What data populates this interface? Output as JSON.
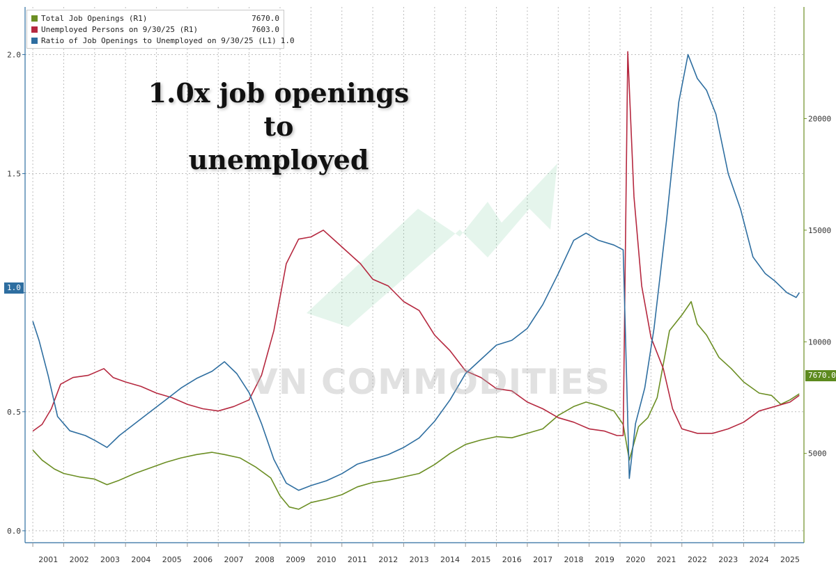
{
  "headline": [
    "1.0x job openings to",
    "unemployed"
  ],
  "watermark": "VN COMMODITIES",
  "legend": [
    {
      "label": "Total Job Openings (R1)",
      "value": "7670.0",
      "color": "#6b8e23"
    },
    {
      "label": "Unemployed Persons on 9/30/25 (R1)",
      "value": "7603.0",
      "color": "#b5283f"
    },
    {
      "label": "Ratio of Job Openings to Unemployed on 9/30/25 (L1)",
      "value": "1.0",
      "color": "#2e6ea0"
    }
  ],
  "badges": {
    "left": "1.0",
    "right": "7670.0"
  },
  "chart_data": {
    "type": "line",
    "x_range": [
      2000.75,
      2025.95
    ],
    "left_axis": {
      "ylim": [
        -0.05,
        2.2
      ],
      "ticks": [
        0.0,
        0.5,
        1.0,
        1.5,
        2.0
      ],
      "tick_labels": [
        "0.0",
        "0.5",
        "1.0",
        "1.5",
        "2.0"
      ]
    },
    "right_axis": {
      "ylim": [
        1000,
        25000
      ],
      "ticks": [
        5000,
        10000,
        15000,
        20000
      ],
      "tick_labels": [
        "5000",
        "10000",
        "15000",
        "20000"
      ]
    },
    "x_labels": [
      "2001",
      "2002",
      "2003",
      "2004",
      "2005",
      "2006",
      "2007",
      "2008",
      "2009",
      "2010",
      "2011",
      "2012",
      "2013",
      "2014",
      "2015",
      "2016",
      "2017",
      "2018",
      "2019",
      "2020",
      "2021",
      "2022",
      "2023",
      "2024",
      "2025"
    ],
    "grid": true,
    "series": [
      {
        "name": "Total Job Openings (R1)",
        "axis": "right",
        "color": "#6b8e23",
        "points": [
          [
            2001.0,
            5150
          ],
          [
            2001.3,
            4700
          ],
          [
            2001.7,
            4300
          ],
          [
            2002.0,
            4100
          ],
          [
            2002.5,
            3950
          ],
          [
            2003.0,
            3850
          ],
          [
            2003.4,
            3600
          ],
          [
            2003.8,
            3800
          ],
          [
            2004.3,
            4100
          ],
          [
            2004.8,
            4350
          ],
          [
            2005.3,
            4600
          ],
          [
            2005.8,
            4800
          ],
          [
            2006.3,
            4950
          ],
          [
            2006.8,
            5050
          ],
          [
            2007.2,
            4950
          ],
          [
            2007.7,
            4800
          ],
          [
            2008.2,
            4400
          ],
          [
            2008.7,
            3900
          ],
          [
            2009.0,
            3100
          ],
          [
            2009.3,
            2600
          ],
          [
            2009.6,
            2500
          ],
          [
            2010.0,
            2800
          ],
          [
            2010.5,
            2950
          ],
          [
            2011.0,
            3150
          ],
          [
            2011.5,
            3500
          ],
          [
            2012.0,
            3700
          ],
          [
            2012.5,
            3800
          ],
          [
            2013.0,
            3950
          ],
          [
            2013.5,
            4100
          ],
          [
            2014.0,
            4500
          ],
          [
            2014.5,
            5000
          ],
          [
            2015.0,
            5400
          ],
          [
            2015.5,
            5600
          ],
          [
            2016.0,
            5750
          ],
          [
            2016.5,
            5700
          ],
          [
            2017.0,
            5900
          ],
          [
            2017.5,
            6100
          ],
          [
            2018.0,
            6700
          ],
          [
            2018.5,
            7100
          ],
          [
            2018.9,
            7300
          ],
          [
            2019.3,
            7150
          ],
          [
            2019.8,
            6900
          ],
          [
            2020.1,
            6300
          ],
          [
            2020.3,
            4700
          ],
          [
            2020.6,
            6200
          ],
          [
            2020.9,
            6600
          ],
          [
            2021.2,
            7500
          ],
          [
            2021.6,
            10500
          ],
          [
            2022.0,
            11200
          ],
          [
            2022.3,
            11800
          ],
          [
            2022.5,
            10800
          ],
          [
            2022.8,
            10300
          ],
          [
            2023.2,
            9300
          ],
          [
            2023.6,
            8800
          ],
          [
            2024.0,
            8200
          ],
          [
            2024.5,
            7700
          ],
          [
            2024.9,
            7600
          ],
          [
            2025.2,
            7200
          ],
          [
            2025.5,
            7400
          ],
          [
            2025.8,
            7670
          ]
        ]
      },
      {
        "name": "Unemployed Persons on 9/30/25 (R1)",
        "axis": "right",
        "color": "#b5283f",
        "points": [
          [
            2001.0,
            6000
          ],
          [
            2001.3,
            6300
          ],
          [
            2001.6,
            7000
          ],
          [
            2001.9,
            8100
          ],
          [
            2002.3,
            8400
          ],
          [
            2002.8,
            8500
          ],
          [
            2003.3,
            8800
          ],
          [
            2003.6,
            8400
          ],
          [
            2004.0,
            8200
          ],
          [
            2004.5,
            8000
          ],
          [
            2005.0,
            7700
          ],
          [
            2005.5,
            7500
          ],
          [
            2006.0,
            7200
          ],
          [
            2006.5,
            7000
          ],
          [
            2007.0,
            6900
          ],
          [
            2007.5,
            7100
          ],
          [
            2008.0,
            7400
          ],
          [
            2008.4,
            8500
          ],
          [
            2008.8,
            10500
          ],
          [
            2009.2,
            13500
          ],
          [
            2009.6,
            14600
          ],
          [
            2010.0,
            14700
          ],
          [
            2010.4,
            15000
          ],
          [
            2010.8,
            14500
          ],
          [
            2011.2,
            14000
          ],
          [
            2011.6,
            13500
          ],
          [
            2012.0,
            12800
          ],
          [
            2012.5,
            12500
          ],
          [
            2013.0,
            11800
          ],
          [
            2013.5,
            11400
          ],
          [
            2014.0,
            10300
          ],
          [
            2014.5,
            9600
          ],
          [
            2015.0,
            8700
          ],
          [
            2015.5,
            8400
          ],
          [
            2016.0,
            7900
          ],
          [
            2016.5,
            7800
          ],
          [
            2017.0,
            7300
          ],
          [
            2017.5,
            7000
          ],
          [
            2018.0,
            6600
          ],
          [
            2018.5,
            6400
          ],
          [
            2019.0,
            6100
          ],
          [
            2019.5,
            6000
          ],
          [
            2019.9,
            5800
          ],
          [
            2020.1,
            5800
          ],
          [
            2020.25,
            23000
          ],
          [
            2020.45,
            16500
          ],
          [
            2020.7,
            12500
          ],
          [
            2021.0,
            10200
          ],
          [
            2021.4,
            8800
          ],
          [
            2021.7,
            7000
          ],
          [
            2022.0,
            6100
          ],
          [
            2022.5,
            5900
          ],
          [
            2023.0,
            5900
          ],
          [
            2023.5,
            6100
          ],
          [
            2024.0,
            6400
          ],
          [
            2024.5,
            6900
          ],
          [
            2025.0,
            7100
          ],
          [
            2025.5,
            7300
          ],
          [
            2025.8,
            7603
          ]
        ]
      },
      {
        "name": "Ratio of Job Openings to Unemployed on 9/30/25 (L1)",
        "axis": "left",
        "color": "#2e6ea0",
        "points": [
          [
            2001.0,
            0.88
          ],
          [
            2001.2,
            0.8
          ],
          [
            2001.5,
            0.65
          ],
          [
            2001.8,
            0.48
          ],
          [
            2002.2,
            0.42
          ],
          [
            2002.7,
            0.4
          ],
          [
            2003.0,
            0.38
          ],
          [
            2003.4,
            0.35
          ],
          [
            2003.8,
            0.4
          ],
          [
            2004.3,
            0.45
          ],
          [
            2004.8,
            0.5
          ],
          [
            2005.3,
            0.55
          ],
          [
            2005.8,
            0.6
          ],
          [
            2006.3,
            0.64
          ],
          [
            2006.8,
            0.67
          ],
          [
            2007.2,
            0.71
          ],
          [
            2007.6,
            0.66
          ],
          [
            2008.0,
            0.58
          ],
          [
            2008.4,
            0.45
          ],
          [
            2008.8,
            0.3
          ],
          [
            2009.2,
            0.2
          ],
          [
            2009.6,
            0.17
          ],
          [
            2010.0,
            0.19
          ],
          [
            2010.5,
            0.21
          ],
          [
            2011.0,
            0.24
          ],
          [
            2011.5,
            0.28
          ],
          [
            2012.0,
            0.3
          ],
          [
            2012.5,
            0.32
          ],
          [
            2013.0,
            0.35
          ],
          [
            2013.5,
            0.39
          ],
          [
            2014.0,
            0.46
          ],
          [
            2014.5,
            0.55
          ],
          [
            2015.0,
            0.66
          ],
          [
            2015.5,
            0.72
          ],
          [
            2016.0,
            0.78
          ],
          [
            2016.5,
            0.8
          ],
          [
            2017.0,
            0.85
          ],
          [
            2017.5,
            0.95
          ],
          [
            2018.0,
            1.08
          ],
          [
            2018.5,
            1.22
          ],
          [
            2018.9,
            1.25
          ],
          [
            2019.3,
            1.22
          ],
          [
            2019.8,
            1.2
          ],
          [
            2020.1,
            1.18
          ],
          [
            2020.3,
            0.22
          ],
          [
            2020.5,
            0.45
          ],
          [
            2020.8,
            0.6
          ],
          [
            2021.1,
            0.85
          ],
          [
            2021.5,
            1.3
          ],
          [
            2021.9,
            1.8
          ],
          [
            2022.2,
            2.0
          ],
          [
            2022.5,
            1.9
          ],
          [
            2022.8,
            1.85
          ],
          [
            2023.1,
            1.75
          ],
          [
            2023.5,
            1.5
          ],
          [
            2023.9,
            1.35
          ],
          [
            2024.3,
            1.15
          ],
          [
            2024.7,
            1.08
          ],
          [
            2025.0,
            1.05
          ],
          [
            2025.4,
            1.0
          ],
          [
            2025.7,
            0.98
          ],
          [
            2025.8,
            1.0
          ]
        ]
      }
    ]
  }
}
